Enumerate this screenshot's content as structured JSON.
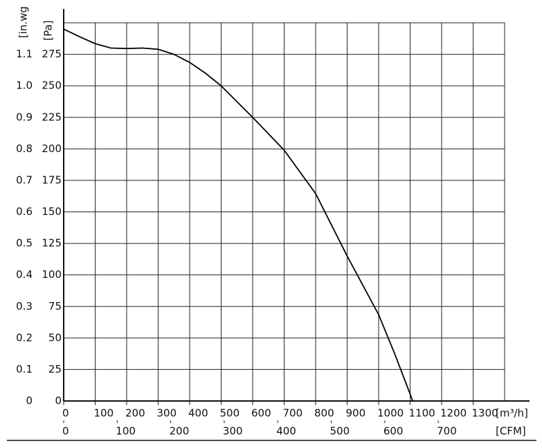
{
  "chart_data": {
    "type": "line",
    "x_label": "[m³/h]",
    "x2_label": "[CFM]",
    "y_label": "[Pa]",
    "y2_label": "[in.wg",
    "x": [
      0,
      50,
      100,
      150,
      200,
      250,
      300,
      350,
      400,
      450,
      500,
      600,
      700,
      800,
      900,
      1000,
      1050,
      1100,
      1108
    ],
    "series": [
      {
        "color": "#000000",
        "values": [
          295,
          289,
          283.5,
          280,
          279.6,
          280,
          279,
          275,
          268.6,
          260,
          250,
          225,
          199,
          164.5,
          115,
          68.5,
          38,
          5.5,
          0
        ]
      }
    ],
    "xlim": [
      0,
      1400
    ],
    "xticks": [
      0,
      100,
      200,
      300,
      400,
      500,
      600,
      700,
      800,
      900,
      1000,
      1100,
      1200,
      1300
    ],
    "x2lim": [
      0,
      824
    ],
    "x2ticks": [
      0,
      100,
      200,
      300,
      400,
      500,
      600,
      700
    ],
    "ylim": [
      0,
      300
    ],
    "yticks": [
      0,
      25,
      50,
      75,
      100,
      125,
      150,
      175,
      200,
      225,
      250,
      275
    ],
    "y2lim": [
      0,
      1.2
    ],
    "y2ticks": [
      0,
      0.1,
      0.2,
      0.3,
      0.4,
      0.5,
      0.6,
      0.7,
      0.8,
      0.9,
      {
        "value": 1,
        "label": "1.0"
      },
      1.1
    ],
    "grid": true
  }
}
